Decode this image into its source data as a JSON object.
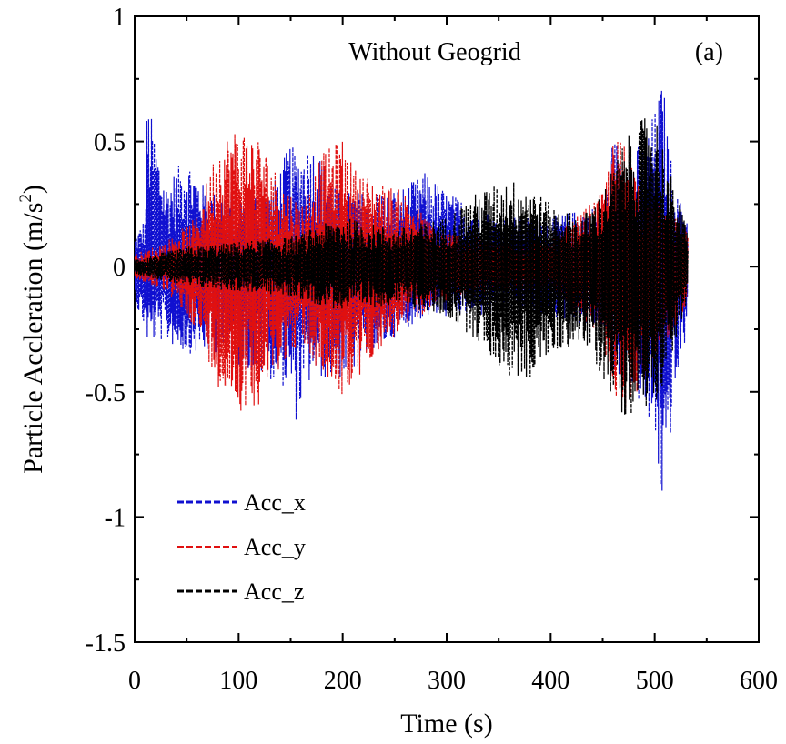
{
  "chart_data": {
    "type": "line",
    "title": "Without Geogrid",
    "panel_label": "(a)",
    "xlabel": "Time (s)",
    "ylabel_main": "Particle Accleration (m/s",
    "ylabel_sup": "2",
    "ylabel_close": ")",
    "xlim": [
      0,
      600
    ],
    "ylim": [
      -1.5,
      1
    ],
    "x_ticks": [
      "0",
      "100",
      "200",
      "300",
      "400",
      "500",
      "600"
    ],
    "y_ticks": [
      "1",
      "0.5",
      "0",
      "-0.5",
      "-1",
      "-1.5"
    ],
    "x_tick_values": [
      0,
      100,
      200,
      300,
      400,
      500,
      600
    ],
    "y_tick_values": [
      1,
      0.5,
      0,
      -0.5,
      -1,
      -1.5
    ],
    "grid": false,
    "legend_position": "bottom-left",
    "duration_s": 532,
    "series": [
      {
        "name": "Acc_x",
        "color": "#1010d0",
        "line_style": "dashed",
        "envelope_t": [
          0,
          10,
          12,
          30,
          50,
          70,
          100,
          130,
          150,
          155,
          170,
          200,
          230,
          260,
          280,
          300,
          350,
          400,
          450,
          460,
          480,
          500,
          508,
          512,
          520,
          532
        ],
        "envelope_upper": [
          0.12,
          0.2,
          0.68,
          0.33,
          0.45,
          0.3,
          0.3,
          0.3,
          0.5,
          0.45,
          0.5,
          0.3,
          0.3,
          0.32,
          0.38,
          0.3,
          0.2,
          0.2,
          0.25,
          0.52,
          0.45,
          0.62,
          0.76,
          0.55,
          0.3,
          0.2
        ],
        "envelope_lower": [
          -0.15,
          -0.25,
          -0.3,
          -0.3,
          -0.35,
          -0.35,
          -0.4,
          -0.45,
          -0.5,
          -0.62,
          -0.45,
          -0.45,
          -0.35,
          -0.25,
          -0.2,
          -0.2,
          -0.2,
          -0.2,
          -0.25,
          -0.45,
          -0.5,
          -0.7,
          -1.03,
          -0.8,
          -0.5,
          -0.25
        ]
      },
      {
        "name": "Acc_y",
        "color": "#e01010",
        "line_style": "dashed",
        "envelope_t": [
          0,
          30,
          60,
          80,
          100,
          120,
          140,
          160,
          180,
          200,
          210,
          230,
          260,
          290,
          350,
          400,
          450,
          460,
          470,
          490,
          532
        ],
        "envelope_upper": [
          0.05,
          0.1,
          0.2,
          0.5,
          0.57,
          0.52,
          0.35,
          0.25,
          0.45,
          0.52,
          0.4,
          0.35,
          0.3,
          0.15,
          0.1,
          0.1,
          0.3,
          0.5,
          0.52,
          0.3,
          0.15
        ],
        "envelope_lower": [
          -0.05,
          -0.1,
          -0.25,
          -0.48,
          -0.58,
          -0.55,
          -0.4,
          -0.3,
          -0.45,
          -0.52,
          -0.5,
          -0.35,
          -0.25,
          -0.15,
          -0.1,
          -0.1,
          -0.3,
          -0.5,
          -0.6,
          -0.45,
          -0.15
        ]
      },
      {
        "name": "Acc_z",
        "color": "#000000",
        "line_style": "dashed",
        "envelope_t": [
          0,
          50,
          100,
          150,
          200,
          250,
          300,
          330,
          360,
          380,
          400,
          430,
          450,
          470,
          500,
          510,
          520,
          532
        ],
        "envelope_upper": [
          0.03,
          0.08,
          0.1,
          0.12,
          0.2,
          0.15,
          0.2,
          0.3,
          0.35,
          0.33,
          0.25,
          0.2,
          0.3,
          0.5,
          0.65,
          0.45,
          0.3,
          0.15
        ],
        "envelope_lower": [
          -0.03,
          -0.08,
          -0.1,
          -0.12,
          -0.18,
          -0.15,
          -0.2,
          -0.3,
          -0.45,
          -0.45,
          -0.35,
          -0.3,
          -0.45,
          -0.6,
          -0.55,
          -0.45,
          -0.3,
          -0.15
        ]
      }
    ]
  }
}
